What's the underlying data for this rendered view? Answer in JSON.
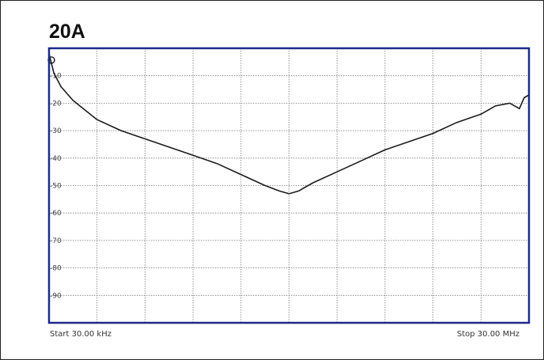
{
  "chart_data": {
    "type": "line",
    "title": "20A",
    "xlabel": "",
    "ylabel": "",
    "start_label": "Start 30.00 kHz",
    "stop_label": "Stop 30.00 MHz",
    "ylim": [
      -100,
      0
    ],
    "y_tick_labels": [
      "-10",
      "-20",
      "-30",
      "-40",
      "-50",
      "-60",
      "-70",
      "-80",
      "-90"
    ],
    "y_tick_values": [
      -10,
      -20,
      -30,
      -40,
      -50,
      -60,
      -70,
      -80,
      -90
    ],
    "x_divisions": 10,
    "grid": true,
    "series": [
      {
        "color": "#1a1a1a",
        "x_fraction": [
          0.0,
          0.01,
          0.025,
          0.05,
          0.1,
          0.15,
          0.2,
          0.25,
          0.3,
          0.35,
          0.4,
          0.45,
          0.48,
          0.5,
          0.52,
          0.55,
          0.6,
          0.65,
          0.7,
          0.75,
          0.8,
          0.85,
          0.9,
          0.93,
          0.96,
          0.98,
          0.99,
          1.0
        ],
        "values": [
          -2,
          -9,
          -14,
          -19,
          -26,
          -30,
          -33,
          -36,
          -39,
          -42,
          -46,
          -50,
          -52,
          -53,
          -52,
          -49,
          -45,
          -41,
          -37,
          -34,
          -31,
          -27,
          -24,
          -21,
          -20,
          -22,
          -18,
          -17
        ]
      }
    ]
  }
}
